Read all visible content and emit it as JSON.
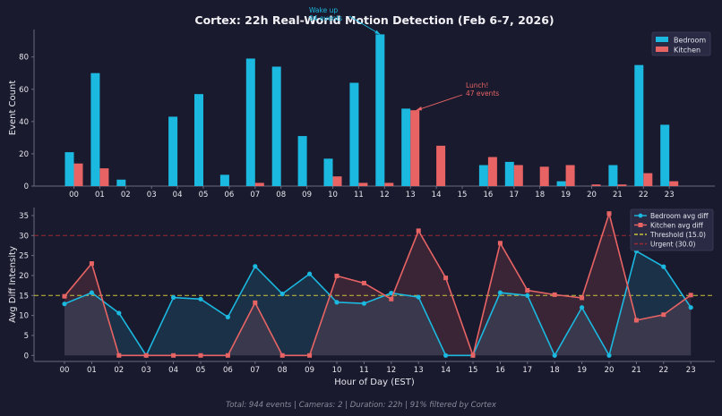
{
  "figure": {
    "title": "Cortex: 22h Real-World Motion Detection (Feb 6-7, 2026)",
    "footer": "Total: 944 events | Cameras: 2 | Duration: 22h | 91% filtered by Cortex"
  },
  "colors": {
    "background": "#1a1a2e",
    "bedroom": "#1bb8e0",
    "kitchen": "#e86464",
    "threshold": "#c9c23a",
    "urgent": "#9c2a35",
    "axis": "#6b6b80",
    "text": "#e6e6ee"
  },
  "chart_data": [
    {
      "type": "bar",
      "ylabel": "Event Count",
      "xlabel": "",
      "ylim": [
        0,
        97
      ],
      "yticks": [
        0,
        20,
        40,
        60,
        80
      ],
      "categories": [
        "00",
        "01",
        "02",
        "03",
        "04",
        "05",
        "06",
        "07",
        "08",
        "09",
        "10",
        "11",
        "12",
        "13",
        "14",
        "15",
        "16",
        "17",
        "18",
        "19",
        "20",
        "21",
        "22",
        "23"
      ],
      "series": [
        {
          "name": "Bedroom",
          "values": [
            21,
            70,
            4,
            0,
            43,
            57,
            7,
            79,
            74,
            31,
            17,
            64,
            94,
            48,
            0,
            0,
            13,
            15,
            0,
            3,
            0,
            13,
            75,
            38
          ]
        },
        {
          "name": "Kitchen",
          "values": [
            14,
            11,
            0,
            0,
            0,
            0,
            0,
            2,
            0,
            0,
            6,
            2,
            2,
            47,
            25,
            0,
            18,
            13,
            12,
            13,
            1,
            1,
            8,
            3
          ]
        }
      ],
      "legend_position": "top-right",
      "annotations": [
        {
          "text_lines": [
            "Wake up",
            "94 events"
          ],
          "category": "12",
          "value": 94,
          "series": "Bedroom"
        },
        {
          "text_lines": [
            "Lunch!",
            "47 events"
          ],
          "category": "13",
          "value": 47,
          "series": "Kitchen"
        }
      ]
    },
    {
      "type": "area",
      "xlabel": "Hour of Day (EST)",
      "ylabel": "Avg Diff Intensity",
      "ylim": [
        -1.5,
        37
      ],
      "yticks": [
        0,
        5,
        10,
        15,
        20,
        25,
        30,
        35
      ],
      "categories": [
        "00",
        "01",
        "02",
        "03",
        "04",
        "05",
        "06",
        "07",
        "08",
        "09",
        "10",
        "11",
        "12",
        "13",
        "14",
        "15",
        "16",
        "17",
        "18",
        "19",
        "20",
        "21",
        "22",
        "23"
      ],
      "series": [
        {
          "name": "Bedroom avg diff",
          "values": [
            12.9,
            15.7,
            10.6,
            0,
            14.5,
            14.1,
            9.6,
            22.3,
            15.4,
            20.4,
            13.3,
            13.0,
            15.6,
            14.6,
            0,
            0,
            15.7,
            15.0,
            0,
            12.0,
            0,
            26.1,
            22.2,
            12.0
          ]
        },
        {
          "name": "Kitchen avg diff",
          "values": [
            14.8,
            23.0,
            0,
            0,
            0,
            0,
            0,
            13.2,
            0,
            0,
            19.9,
            18.1,
            14.1,
            31.2,
            19.4,
            0,
            28.1,
            16.3,
            15.2,
            14.4,
            35.5,
            8.8,
            10.2,
            15.1
          ]
        }
      ],
      "reference_lines": [
        {
          "name": "Threshold (15.0)",
          "value": 15
        },
        {
          "name": "Urgent (30.0)",
          "value": 30
        }
      ],
      "legend_position": "top-right"
    }
  ]
}
